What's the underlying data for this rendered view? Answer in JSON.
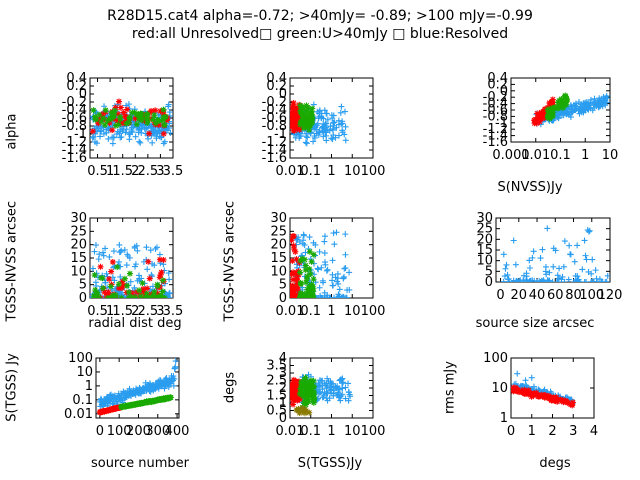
{
  "title_line1": "R28D15.cat4 alpha=-0.72; >40mJy= -0.89; >100 mJy=-0.99",
  "title_line2": "red:all Unresolved□ green:U>40mJy □ blue:Resolved",
  "colors": {
    "red": "#ff0000",
    "green": "#1aaa00",
    "blue": "#2a9df0",
    "olive": "#8a7a00"
  },
  "chart_data": [
    {
      "id": "p1",
      "type": "scatter",
      "ylabel": "alpha",
      "xlabel": "",
      "xticks": [
        "0.5",
        "1",
        "1.5",
        "2",
        "2.5",
        "3",
        "3.5"
      ],
      "xlim": [
        0.2,
        3.5
      ],
      "yticks": [
        "0.4",
        "0.2",
        "0",
        "-0.2",
        "-0.4",
        "-0.6",
        "-0.8",
        "-1",
        "-1.2",
        "-1.4",
        "-1.6"
      ],
      "ylim": [
        -1.6,
        0.4
      ],
      "series": [
        {
          "color": "blue",
          "cloud": {
            "xmin": 0.3,
            "xmax": 3.4,
            "ymin": -1.4,
            "ymax": 0.1,
            "n": 260,
            "cy": -0.75
          }
        },
        {
          "color": "red",
          "cloud": {
            "xmin": 0.3,
            "xmax": 3.3,
            "ymin": -1.1,
            "ymax": 0.0,
            "n": 55,
            "cy": -0.6
          }
        },
        {
          "color": "green",
          "cloud": {
            "xmin": 0.3,
            "xmax": 3.3,
            "ymin": -1.0,
            "ymax": -0.2,
            "n": 55,
            "cy": -0.6
          }
        }
      ]
    },
    {
      "id": "p2",
      "type": "scatter",
      "ylabel": "",
      "xlabel": "",
      "xticks": [
        "0.01",
        "0.1",
        "1",
        "10",
        "100"
      ],
      "xlim": [
        0.01,
        100
      ],
      "xlog": true,
      "yticks": [
        "0.4",
        "0.2",
        "0",
        "-0.2",
        "-0.4",
        "-0.6",
        "-0.8",
        "-1",
        "-1.2",
        "-1.4",
        "-1.6"
      ],
      "ylim": [
        -1.6,
        0.4
      ],
      "series": [
        {
          "color": "blue",
          "cloud": {
            "xmin": 0.015,
            "xmax": 5,
            "ymin": -1.4,
            "ymax": 0.0,
            "n": 200,
            "cy": -0.8,
            "logx": true,
            "skew": 0.35
          }
        },
        {
          "color": "red",
          "cloud": {
            "xmin": 0.012,
            "xmax": 0.03,
            "ymin": -1.2,
            "ymax": 0.0,
            "n": 70,
            "cy": -0.6,
            "logx": true
          }
        },
        {
          "color": "green",
          "cloud": {
            "xmin": 0.03,
            "xmax": 0.12,
            "ymin": -1.1,
            "ymax": -0.2,
            "n": 60,
            "cy": -0.6,
            "logx": true
          }
        }
      ]
    },
    {
      "id": "p3",
      "type": "scatter",
      "ylabel": "",
      "xlabel": "S(NVSS)Jy",
      "xticks": [
        "0.001",
        "0.01",
        "0.1",
        "1",
        "10"
      ],
      "xlim": [
        0.001,
        10
      ],
      "xlog": true,
      "yticks": [
        "0.4",
        "0.2",
        "0",
        "-0.2",
        "-0.4",
        "-0.6",
        "-0.8",
        "-1",
        "-1.2",
        "-1.4",
        "-1.6"
      ],
      "ylim": [
        -1.6,
        0.4
      ],
      "series": [
        {
          "color": "blue",
          "cloud": {
            "xmin": 0.01,
            "xmax": 8,
            "ymin": -1.3,
            "ymax": 0.2,
            "n": 200,
            "cy": -0.6,
            "logx": true,
            "trend": true
          }
        },
        {
          "color": "red",
          "cloud": {
            "xmin": 0.008,
            "xmax": 0.05,
            "ymin": -1.1,
            "ymax": -0.2,
            "n": 60,
            "cy": -0.7,
            "logx": true,
            "trend": true
          }
        },
        {
          "color": "green",
          "cloud": {
            "xmin": 0.03,
            "xmax": 0.2,
            "ymin": -1.0,
            "ymax": 0.0,
            "n": 60,
            "cy": -0.5,
            "logx": true,
            "trend": true
          }
        }
      ]
    },
    {
      "id": "p4",
      "type": "scatter",
      "ylabel": "TGSS-NVSS arcsec",
      "xlabel": "radial dist deg",
      "xticks": [
        "0.5",
        "1",
        "1.5",
        "2",
        "2.5",
        "3",
        "3.5"
      ],
      "xlim": [
        0.2,
        3.5
      ],
      "yticks": [
        "0",
        "5",
        "10",
        "15",
        "20",
        "25",
        "30"
      ],
      "ylim": [
        0,
        30
      ],
      "series": [
        {
          "color": "blue",
          "cloud": {
            "xmin": 0.3,
            "xmax": 3.4,
            "ymin": 0,
            "ymax": 20,
            "n": 220,
            "cy": 3,
            "decay": true
          }
        },
        {
          "color": "red",
          "cloud": {
            "xmin": 0.3,
            "xmax": 3.2,
            "ymin": 0,
            "ymax": 15,
            "n": 50,
            "cy": 2,
            "decay": true
          }
        },
        {
          "color": "green",
          "cloud": {
            "xmin": 0.3,
            "xmax": 3.2,
            "ymin": 0,
            "ymax": 12,
            "n": 50,
            "cy": 2,
            "decay": true
          }
        }
      ]
    },
    {
      "id": "p5",
      "type": "scatter",
      "ylabel": "TGSS-NVSS arcsec",
      "xlabel": "",
      "xticks": [
        "0.01",
        "0.1",
        "1",
        "10",
        "100"
      ],
      "xlim": [
        0.01,
        100
      ],
      "xlog": true,
      "yticks": [
        "0",
        "5",
        "10",
        "15",
        "20",
        "25",
        "30"
      ],
      "ylim": [
        0,
        30
      ],
      "series": [
        {
          "color": "blue",
          "cloud": {
            "xmin": 0.02,
            "xmax": 8,
            "ymin": 0,
            "ymax": 25,
            "n": 180,
            "cy": 4,
            "logx": true,
            "decay": true,
            "skew": 0.3
          }
        },
        {
          "color": "red",
          "cloud": {
            "xmin": 0.011,
            "xmax": 0.03,
            "ymin": 0,
            "ymax": 24,
            "n": 70,
            "cy": 5,
            "logx": true,
            "decay": true
          }
        },
        {
          "color": "green",
          "cloud": {
            "xmin": 0.03,
            "xmax": 0.15,
            "ymin": 0,
            "ymax": 18,
            "n": 60,
            "cy": 4,
            "logx": true,
            "decay": true
          }
        }
      ]
    },
    {
      "id": "p6",
      "type": "scatter",
      "ylabel": "",
      "xlabel": "source size arcsec",
      "xticks": [
        "0",
        "20",
        "40",
        "60",
        "80",
        "100",
        "120"
      ],
      "xlim": [
        -5,
        120
      ],
      "yticks": [
        "0",
        "5",
        "10",
        "15",
        "20",
        "25",
        "30"
      ],
      "ylim": [
        0,
        30
      ],
      "series": [
        {
          "color": "blue",
          "cloud": {
            "xmin": 1,
            "xmax": 118,
            "ymin": 0,
            "ymax": 27,
            "n": 110,
            "cy": 5,
            "decay": true
          }
        }
      ]
    },
    {
      "id": "p7",
      "type": "scatter",
      "ylabel": "S(TGSS) Jy",
      "xlabel": "source number",
      "xticks": [
        "0",
        "100",
        "200",
        "300",
        "400"
      ],
      "xlim": [
        -20,
        410
      ],
      "yticks": [
        "0.01",
        "0.1",
        "1",
        "10",
        "100"
      ],
      "ylim": [
        0.005,
        100
      ],
      "ylog": true,
      "series": [
        {
          "color": "blue",
          "rank": {
            "x0": 0,
            "x1": 395,
            "y0": 0.06,
            "y1": 2.5,
            "spread": 1.5,
            "tail": 50
          }
        },
        {
          "color": "red",
          "rank": {
            "x0": 0,
            "x1": 110,
            "y0": 0.013,
            "y1": 0.03,
            "spread": 0.15
          }
        },
        {
          "color": "green",
          "rank": {
            "x0": 110,
            "x1": 370,
            "y0": 0.03,
            "y1": 0.15,
            "spread": 0.2
          }
        }
      ]
    },
    {
      "id": "p8",
      "type": "scatter",
      "ylabel": "degs",
      "xlabel": "S(TGSS)Jy",
      "xticks": [
        "0.01",
        "0.1",
        "1",
        "10",
        "100"
      ],
      "xlim": [
        0.01,
        100
      ],
      "xlog": true,
      "yticks": [
        "0",
        "0.5",
        "1",
        "1.5",
        "2",
        "2.5",
        "3",
        "3.5",
        "4"
      ],
      "ylim": [
        0,
        4
      ],
      "series": [
        {
          "color": "blue",
          "cloud": {
            "xmin": 0.04,
            "xmax": 8,
            "ymin": 0.2,
            "ymax": 3.2,
            "n": 190,
            "cy": 1.9,
            "logx": true,
            "skew": 0.35
          }
        },
        {
          "color": "red",
          "cloud": {
            "xmin": 0.012,
            "xmax": 0.03,
            "ymin": 0.2,
            "ymax": 3.0,
            "n": 80,
            "cy": 1.8,
            "logx": true
          }
        },
        {
          "color": "green",
          "cloud": {
            "xmin": 0.03,
            "xmax": 0.15,
            "ymin": 0.1,
            "ymax": 3.0,
            "n": 70,
            "cy": 1.8,
            "logx": true
          }
        },
        {
          "color": "olive",
          "cloud": {
            "xmin": 0.02,
            "xmax": 0.1,
            "ymin": 0.1,
            "ymax": 1.0,
            "n": 10,
            "cy": 0.5,
            "logx": true
          }
        }
      ]
    },
    {
      "id": "p9",
      "type": "scatter",
      "ylabel": "rms mJy",
      "xlabel": "degs",
      "xticks": [
        "0",
        "1",
        "2",
        "3",
        "4"
      ],
      "xlim": [
        0,
        4
      ],
      "yticks": [
        "1",
        "10",
        "100"
      ],
      "ylim": [
        1,
        100
      ],
      "ylog": true,
      "series": [
        {
          "color": "blue",
          "band": {
            "x0": 0.1,
            "x1": 3.0,
            "yA": 12,
            "yB": 3.5,
            "spread": 0.12,
            "n": 160,
            "outliers": [
              [
                0.3,
                30
              ],
              [
                1.0,
                22
              ],
              [
                0.7,
                18
              ]
            ]
          }
        },
        {
          "color": "red",
          "band": {
            "x0": 0.1,
            "x1": 3.0,
            "yA": 9,
            "yB": 3.0,
            "spread": 0.08,
            "n": 90
          }
        }
      ]
    }
  ]
}
